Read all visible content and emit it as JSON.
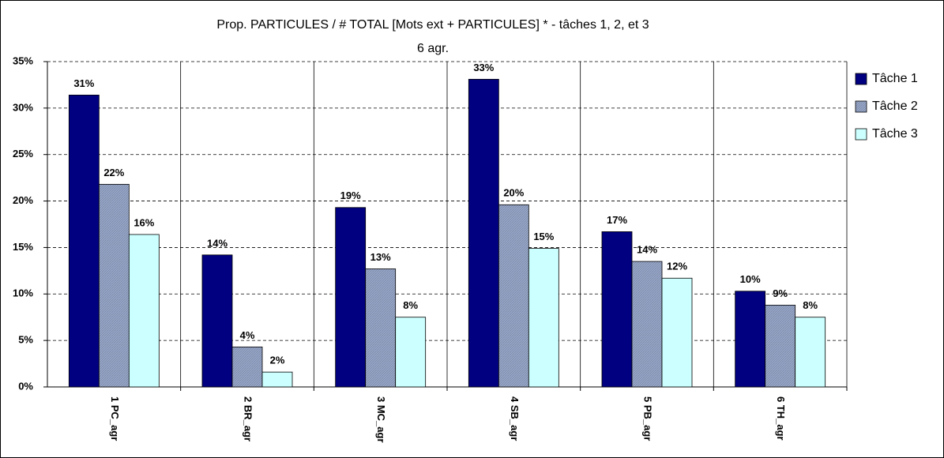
{
  "chart_data": {
    "type": "bar",
    "title": "Prop. PARTICULES /  # TOTAL [Mots ext + PARTICULES] * - tâches 1, 2, et 3",
    "subtitle": "6 agr.",
    "categories": [
      "1 PC_agr",
      "2 BR_agr",
      "3 MC_agr",
      "4 SB_agr",
      "5 PB_agr",
      "6 TH_agr"
    ],
    "series": [
      {
        "name": "Tâche 1",
        "color": "#000080",
        "values": [
          31.4,
          14.2,
          19.3,
          33.1,
          16.7,
          10.3
        ],
        "value_labels": [
          "31%",
          "14%",
          "19%",
          "33%",
          "17%",
          "10%"
        ]
      },
      {
        "name": "Tâche 2",
        "color": "#99a8c8",
        "values": [
          21.8,
          4.3,
          12.7,
          19.6,
          13.5,
          8.8
        ],
        "value_labels": [
          "22%",
          "4%",
          "13%",
          "20%",
          "14%",
          "9%"
        ]
      },
      {
        "name": "Tâche 3",
        "color": "#ccffff",
        "values": [
          16.4,
          1.6,
          7.5,
          14.9,
          11.7,
          7.5
        ],
        "value_labels": [
          "16%",
          "2%",
          "8%",
          "15%",
          "12%",
          "8%"
        ]
      }
    ],
    "ylim": [
      0,
      35
    ],
    "yticks": [
      {
        "value": 0,
        "label": "0%"
      },
      {
        "value": 5,
        "label": "5%"
      },
      {
        "value": 10,
        "label": "10%"
      },
      {
        "value": 15,
        "label": "15%"
      },
      {
        "value": 20,
        "label": "20%"
      },
      {
        "value": 25,
        "label": "25%"
      },
      {
        "value": 30,
        "label": "30%"
      },
      {
        "value": 35,
        "label": "35%"
      }
    ],
    "grid": true,
    "legend": "right"
  }
}
